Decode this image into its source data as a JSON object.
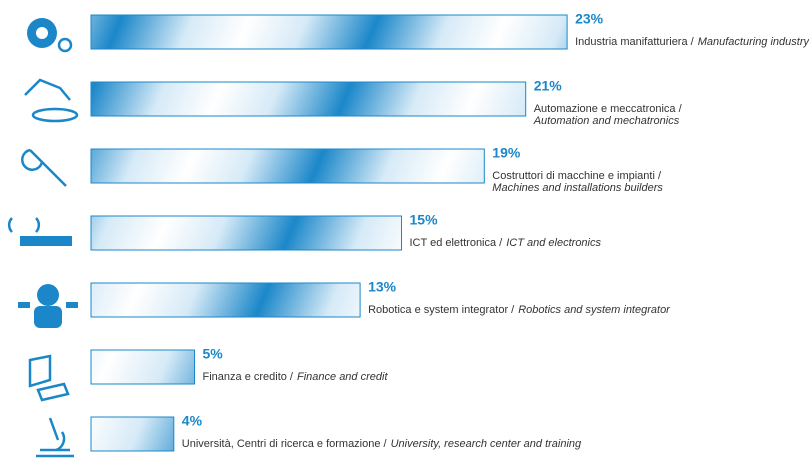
{
  "chart_data": {
    "type": "bar",
    "orientation": "horizontal",
    "color": "#1b87c9",
    "categories": [
      "Industria manifatturiera /",
      "Automazione e meccatronica  /",
      "Costruttori di macchine e impianti /",
      "ICT ed elettronica /",
      "Robotica e system integrator /",
      "Finanza e credito /",
      "Università, Centri di ricerca e formazione  /"
    ],
    "categories_en": [
      "Manufacturing industry",
      "Automation and mechatronics",
      "Machines and installations builders",
      "ICT and electronics",
      "Robotics and system integrator",
      "Finance and credit",
      "University, research center and training"
    ],
    "line_break": [
      false,
      true,
      true,
      false,
      false,
      false,
      false
    ],
    "values": [
      23,
      21,
      19,
      15,
      13,
      5,
      4
    ],
    "value_labels": [
      "23%",
      "21%",
      "19%",
      "15%",
      "13%",
      "5%",
      "4%"
    ]
  }
}
